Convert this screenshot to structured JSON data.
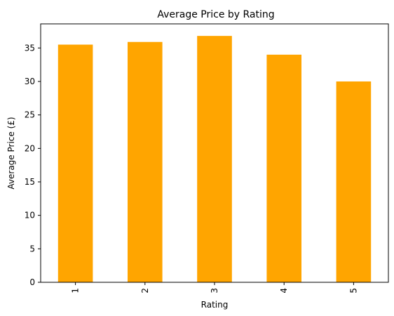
{
  "chart_data": {
    "type": "bar",
    "title": "Average Price by Rating",
    "xlabel": "Rating",
    "ylabel": "Average Price (£)",
    "categories": [
      "1",
      "2",
      "3",
      "4",
      "5"
    ],
    "values": [
      35.5,
      35.9,
      36.8,
      34.0,
      30.0
    ],
    "ylim": [
      0,
      38.6
    ],
    "yticks": [
      0,
      5,
      10,
      15,
      20,
      25,
      30,
      35
    ],
    "bar_color": "#FFA500",
    "grid": false,
    "legend": "none"
  }
}
